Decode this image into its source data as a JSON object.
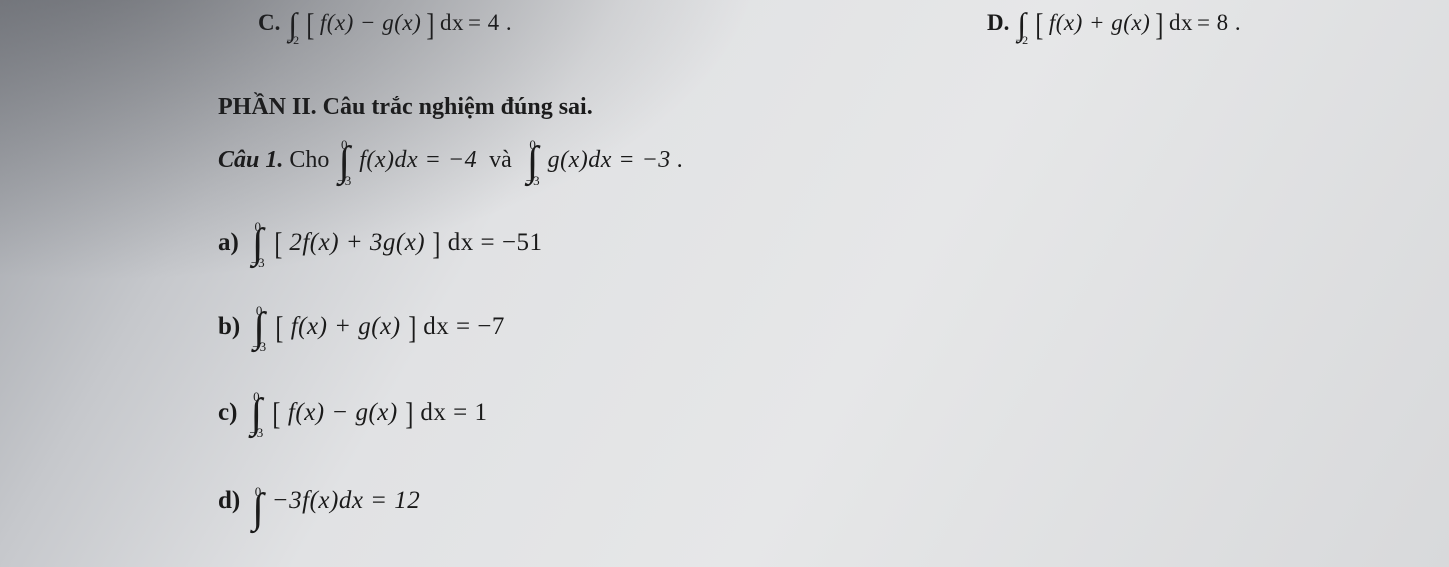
{
  "colors": {
    "text": "#1a1a1a",
    "paper_light": "#e6e7e8",
    "paper_mid": "#c6c8cc",
    "paper_dark": "#9da0a6",
    "shadow": "#282a30"
  },
  "typography": {
    "family": "Times New Roman",
    "base_size_pt": 18,
    "bold_weight": 700
  },
  "top_options": {
    "C": {
      "label": "C.",
      "int_lower": "−2",
      "int_upper": "",
      "expr_open": "[",
      "expr": "f(x) − g(x)",
      "expr_close": "]",
      "dx": "dx",
      "eq": "= 4 ."
    },
    "D": {
      "label": "D.",
      "int_lower": "−2",
      "int_upper": "",
      "expr_open": "[",
      "expr": "f(x) + g(x)",
      "expr_close": "]",
      "dx": "dx",
      "eq": "= 8 ."
    }
  },
  "section_title": "PHẦN II. Câu trắc nghiệm đúng sai.",
  "cau1": {
    "prefix": "Câu 1.",
    "lead": "Cho",
    "int1_lower": "−3",
    "int1_upper": "0",
    "int1_body": "f(x)dx = −4",
    "and": "và",
    "int2_lower": "−3",
    "int2_upper": "0",
    "int2_body": "g(x)dx = −3 ."
  },
  "items": {
    "a": {
      "label": "a)",
      "int_lower": "−3",
      "int_upper": "0",
      "open": "[",
      "body": "2f(x) + 3g(x)",
      "close": "]",
      "tail": "dx = −51"
    },
    "b": {
      "label": "b)",
      "int_lower": "−3",
      "int_upper": "0",
      "open": "[",
      "body": "f(x) + g(x)",
      "close": "]",
      "tail": "dx = −7"
    },
    "c": {
      "label": "c)",
      "int_lower": "−3",
      "int_upper": "0",
      "open": "[",
      "body": "f(x) − g(x)",
      "close": "]",
      "tail": "dx = 1"
    },
    "d": {
      "label": "d)",
      "int_lower": "",
      "int_upper": "0",
      "body": "−3f(x)dx = 12"
    }
  }
}
